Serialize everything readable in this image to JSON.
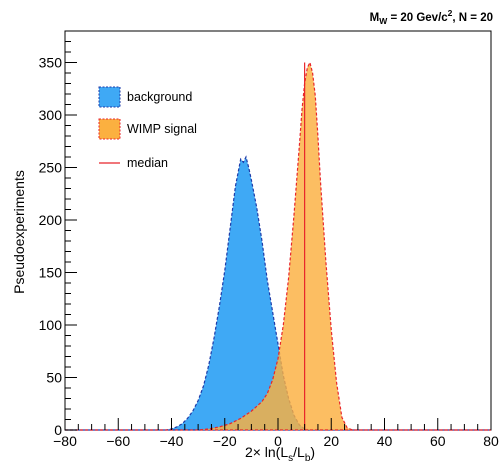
{
  "colors": {
    "background_fill": "#3fa9f5",
    "background_line": "#1e3aa8",
    "signal_fill": "#fbb040",
    "signal_line": "#e8252b",
    "median_line": "#e8252b",
    "axis": "#000000"
  },
  "chart_data": {
    "type": "histogram",
    "title": {
      "main": "M",
      "sub_w": "W",
      "mid": " = 20 Gev/c",
      "sup_2": "2",
      "end": ", N = 20"
    },
    "xlabel": {
      "prefix": "2× ln(L",
      "sub_s": "s",
      "slash": "/L",
      "sub_b": "b",
      "suffix": ")"
    },
    "ylabel": "Pseudoexperiments",
    "xlim": [
      -80,
      80
    ],
    "ylim": [
      0,
      380
    ],
    "xticks": [
      -80,
      -60,
      -40,
      -20,
      0,
      20,
      40,
      60,
      80
    ],
    "yticks": [
      0,
      50,
      100,
      150,
      200,
      250,
      300,
      350
    ],
    "xticks_text": [
      "−80",
      "−60",
      "−40",
      "−20",
      "0",
      "20",
      "40",
      "60",
      "80"
    ],
    "yticks_text": [
      "0",
      "50",
      "100",
      "150",
      "200",
      "250",
      "300",
      "350"
    ],
    "median": 10,
    "median_top": 350,
    "legend": {
      "position": "top-left",
      "entries": [
        "background",
        "WIMP signal",
        "median"
      ]
    },
    "series": [
      {
        "name": "background",
        "points": [
          [
            -80,
            0
          ],
          [
            -42,
            0
          ],
          [
            -40,
            1
          ],
          [
            -38,
            3
          ],
          [
            -36,
            6
          ],
          [
            -34,
            11
          ],
          [
            -32,
            18
          ],
          [
            -30,
            28
          ],
          [
            -28,
            42
          ],
          [
            -26,
            62
          ],
          [
            -24,
            88
          ],
          [
            -22,
            118
          ],
          [
            -20,
            152
          ],
          [
            -18,
            192
          ],
          [
            -16,
            232
          ],
          [
            -14,
            258
          ],
          [
            -13,
            255
          ],
          [
            -12,
            260
          ],
          [
            -11,
            250
          ],
          [
            -10,
            238
          ],
          [
            -8,
            212
          ],
          [
            -6,
            180
          ],
          [
            -4,
            142
          ],
          [
            -2,
            112
          ],
          [
            0,
            82
          ],
          [
            2,
            52
          ],
          [
            4,
            30
          ],
          [
            6,
            14
          ],
          [
            8,
            5
          ],
          [
            10,
            1
          ],
          [
            12,
            0
          ],
          [
            80,
            0
          ]
        ]
      },
      {
        "name": "WIMP signal",
        "points": [
          [
            -80,
            0
          ],
          [
            -30,
            0
          ],
          [
            -26,
            1
          ],
          [
            -22,
            3
          ],
          [
            -18,
            6
          ],
          [
            -14,
            11
          ],
          [
            -10,
            18
          ],
          [
            -6,
            27
          ],
          [
            -4,
            35
          ],
          [
            -2,
            48
          ],
          [
            0,
            68
          ],
          [
            2,
            100
          ],
          [
            4,
            145
          ],
          [
            6,
            205
          ],
          [
            8,
            270
          ],
          [
            9,
            305
          ],
          [
            10,
            330
          ],
          [
            11,
            345
          ],
          [
            12,
            350
          ],
          [
            13,
            340
          ],
          [
            14,
            318
          ],
          [
            15,
            280
          ],
          [
            16,
            235
          ],
          [
            18,
            160
          ],
          [
            20,
            95
          ],
          [
            22,
            45
          ],
          [
            24,
            12
          ],
          [
            26,
            2
          ],
          [
            28,
            0
          ],
          [
            80,
            0
          ]
        ]
      }
    ]
  }
}
